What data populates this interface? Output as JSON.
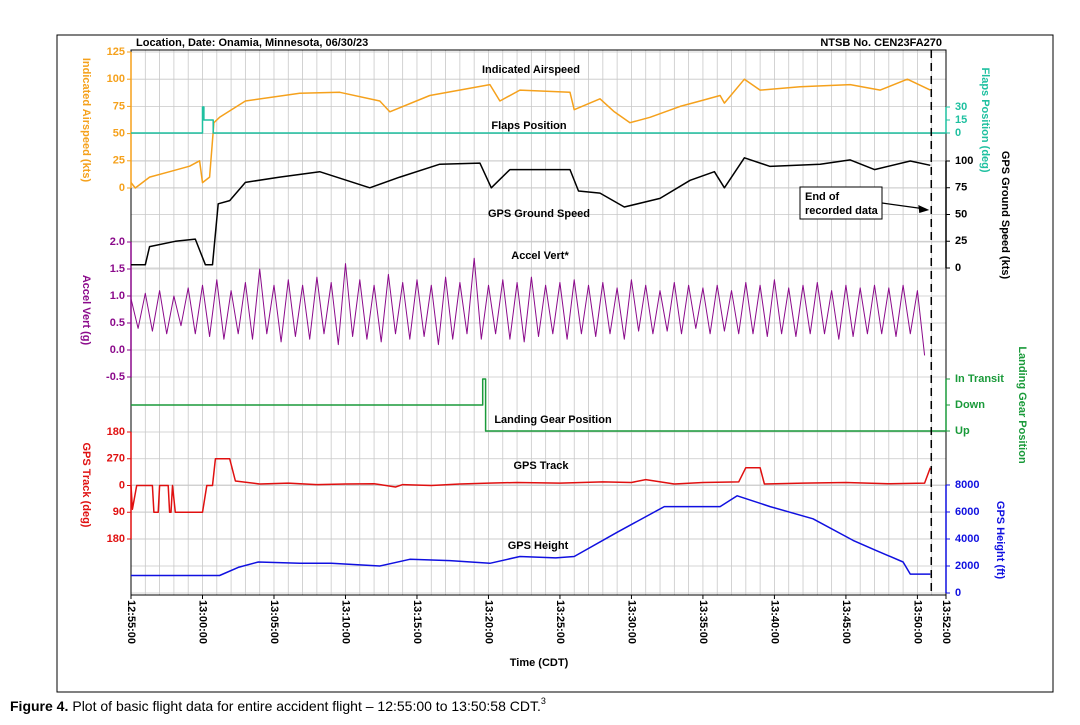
{
  "chart_data": {
    "type": "line",
    "title": "Location, Date: Onamia, Minnesota, 06/30/23",
    "subtitle": "NTSB No. CEN23FA270",
    "xlabel": "Time (CDT)",
    "xlim": [
      0,
      57
    ],
    "xticks": [
      {
        "value": 0,
        "label": "12:55:00"
      },
      {
        "value": 5,
        "label": "13:00:00"
      },
      {
        "value": 10,
        "label": "13:05:00"
      },
      {
        "value": 15,
        "label": "13:10:00"
      },
      {
        "value": 20,
        "label": "13:15:00"
      },
      {
        "value": 25,
        "label": "13:20:00"
      },
      {
        "value": 30,
        "label": "13:25:00"
      },
      {
        "value": 35,
        "label": "13:30:00"
      },
      {
        "value": 40,
        "label": "13:35:00"
      },
      {
        "value": 45,
        "label": "13:40:00"
      },
      {
        "value": 50,
        "label": "13:45:00"
      },
      {
        "value": 55,
        "label": "13:50:00"
      },
      {
        "value": 57,
        "label": "13:52:00"
      }
    ],
    "xgrid": [
      0,
      1,
      2,
      3,
      4,
      5,
      6,
      7,
      8,
      9,
      10,
      11,
      12,
      13,
      14,
      15,
      16,
      17,
      18,
      19,
      20,
      21,
      22,
      23,
      24,
      25,
      26,
      27,
      28,
      29,
      30,
      31,
      32,
      33,
      34,
      35,
      36,
      37,
      38,
      39,
      40,
      41,
      42,
      43,
      44,
      45,
      46,
      47,
      48,
      49,
      50,
      51,
      52,
      53,
      54,
      55,
      56,
      57
    ],
    "axes": [
      {
        "title": "Indicated Airspeed (kts)",
        "side": "left",
        "color": "#f5a11c",
        "grid": true,
        "ylim": [
          0,
          125
        ],
        "yticks": [
          0,
          25,
          50,
          75,
          100,
          125
        ]
      },
      {
        "title": "Flaps Position (deg)",
        "side": "right",
        "color": "#1fc0a0",
        "grid": false,
        "ylim": [
          0,
          30
        ],
        "yticks": [
          0,
          15,
          30
        ]
      },
      {
        "title": "GPS Ground Speed (kts)",
        "side": "right",
        "color": "#000000",
        "grid": true,
        "ylim": [
          0,
          100
        ],
        "yticks": [
          0,
          25,
          50,
          75,
          100
        ]
      },
      {
        "title": "Accel Vert (g)",
        "side": "left",
        "color": "#8b0a8b",
        "grid": true,
        "ylim": [
          -0.5,
          2
        ],
        "yticks": [
          -0.5,
          {
            "value": 0,
            "label": "0.0"
          },
          0.5,
          {
            "value": 1,
            "label": "1.0"
          },
          1.5,
          {
            "value": 2,
            "label": "2.0"
          }
        ]
      },
      {
        "title": "Landing Gear Position",
        "side": "right",
        "color": "#1a9a3a",
        "grid": false,
        "ylim": [
          0,
          2
        ],
        "yticks": [
          {
            "value": 0,
            "label": "Up"
          },
          {
            "value": 1,
            "label": "Down"
          },
          {
            "value": 2,
            "label": "In Transit"
          }
        ]
      },
      {
        "title": "GPS Track (deg)",
        "side": "left",
        "color": "#e01010",
        "grid": true,
        "ylim": [
          -180,
          180
        ],
        "yticks": [
          {
            "value": -180,
            "label": "180"
          },
          {
            "value": -90,
            "label": "270"
          },
          0,
          90,
          180
        ]
      },
      {
        "title": "GPS Height (ft)",
        "side": "right",
        "color": "#1010e0",
        "grid": true,
        "ylim": [
          0,
          8000
        ],
        "yticks": [
          0,
          2000,
          4000,
          6000,
          8000
        ]
      }
    ],
    "series": [
      {
        "name": "Indicated Airspeed",
        "axis": 0,
        "color": "#f5a11c",
        "x": [
          0,
          0.3,
          1.3,
          2.7,
          4.1,
          4.8,
          5.0,
          5.5,
          5.8,
          6.2,
          8,
          11.8,
          14.6,
          17.4,
          18.1,
          20.9,
          25.1,
          25.8,
          27.2,
          30.7,
          31,
          32.8,
          33.8,
          34.9,
          36.3,
          38.4,
          39.8,
          41.2,
          41.5,
          42.9,
          44,
          46.8,
          50.3,
          52.4,
          54.3,
          55.9
        ],
        "values": [
          5,
          0,
          10,
          15,
          20,
          25,
          5,
          10,
          60,
          65,
          80,
          87,
          88,
          80,
          70,
          85,
          95,
          80,
          90,
          88,
          72,
          82,
          70,
          60,
          65,
          75,
          80,
          85,
          78,
          100,
          90,
          93,
          95,
          90,
          100,
          90
        ]
      },
      {
        "name": "Flaps Position",
        "axis": 1,
        "color": "#1fc0a0",
        "x": [
          0,
          5,
          5,
          5.1,
          5.1,
          5.75,
          5.75,
          57
        ],
        "values": [
          0,
          0,
          30,
          30,
          15,
          15,
          0,
          0
        ]
      },
      {
        "name": "GPS Ground Speed",
        "axis": 2,
        "color": "#000000",
        "x": [
          0,
          1,
          1.3,
          3.1,
          4.5,
          5.2,
          5.7,
          6.1,
          6.9,
          8,
          10.4,
          13.2,
          16.7,
          18.8,
          21.6,
          24.4,
          25.2,
          26.5,
          30.7,
          31.3,
          32.8,
          34.5,
          37,
          39.1,
          40.8,
          41.5,
          42.9,
          44.7,
          48.2,
          50.3,
          52,
          54.5,
          55.9
        ],
        "values": [
          3,
          3,
          20,
          25,
          27,
          3,
          3,
          60,
          63,
          80,
          85,
          90,
          75,
          85,
          97,
          98,
          75,
          92,
          92,
          72,
          70,
          57,
          65,
          82,
          90,
          75,
          103,
          95,
          97,
          101,
          92,
          100,
          96
        ]
      },
      {
        "name": "Accel Vert*",
        "axis": 3,
        "color": "#8b0a8b",
        "x": [
          0,
          0.5,
          1,
          1.5,
          2,
          2.5,
          3,
          3.5,
          4,
          4.5,
          5,
          5.5,
          6,
          6.5,
          7,
          7.5,
          8,
          8.5,
          9,
          9.5,
          10,
          10.5,
          11,
          11.5,
          12,
          12.5,
          13,
          13.5,
          14,
          14.5,
          15,
          15.5,
          16,
          16.5,
          17,
          17.5,
          18,
          18.5,
          19,
          19.5,
          20,
          20.5,
          21,
          21.5,
          22,
          22.5,
          23,
          23.5,
          24,
          24.5,
          25,
          25.5,
          26,
          26.5,
          27,
          27.5,
          28,
          28.5,
          29,
          29.5,
          30,
          30.5,
          31,
          31.5,
          32,
          32.5,
          33,
          33.5,
          34,
          34.5,
          35,
          35.5,
          36,
          36.5,
          37,
          37.5,
          38,
          38.5,
          39,
          39.5,
          40,
          40.5,
          41,
          41.5,
          42,
          42.5,
          43,
          43.5,
          44,
          44.5,
          45,
          45.5,
          46,
          46.5,
          47,
          47.5,
          48,
          48.5,
          49,
          49.5,
          50,
          50.5,
          51,
          51.5,
          52,
          52.5,
          53,
          53.5,
          54,
          54.5,
          55,
          55.5
        ],
        "values": [
          0.95,
          0.4,
          1.05,
          0.35,
          1.1,
          0.3,
          1.0,
          0.45,
          1.15,
          0.3,
          1.2,
          0.25,
          1.3,
          0.2,
          1.1,
          0.3,
          1.25,
          0.2,
          1.5,
          0.3,
          1.2,
          0.15,
          1.3,
          0.25,
          1.2,
          0.2,
          1.35,
          0.3,
          1.25,
          0.1,
          1.6,
          0.25,
          1.3,
          0.2,
          1.2,
          0.15,
          1.4,
          0.3,
          1.25,
          0.2,
          1.3,
          0.25,
          1.2,
          0.1,
          1.35,
          0.2,
          1.25,
          0.3,
          1.7,
          0.2,
          1.2,
          0.3,
          1.3,
          0.2,
          1.25,
          0.15,
          1.35,
          0.25,
          1.2,
          0.3,
          1.25,
          0.2,
          1.3,
          0.3,
          1.2,
          0.25,
          1.25,
          0.3,
          1.15,
          0.2,
          1.3,
          0.35,
          1.2,
          0.3,
          1.1,
          0.35,
          1.25,
          0.3,
          1.2,
          0.4,
          1.15,
          0.3,
          1.2,
          0.35,
          1.1,
          0.3,
          1.25,
          0.3,
          1.2,
          0.25,
          1.3,
          0.3,
          1.15,
          0.25,
          1.2,
          0.3,
          1.25,
          0.3,
          1.1,
          0.2,
          1.2,
          0.25,
          1.15,
          0.3,
          1.2,
          0.3,
          1.15,
          0.25,
          1.2,
          0.3,
          1.1,
          -0.1
        ]
      },
      {
        "name": "Landing Gear Position",
        "axis": 4,
        "color": "#1a9a3a",
        "x": [
          0,
          24.6,
          24.6,
          24.8,
          24.8,
          57
        ],
        "values": [
          1,
          1,
          2,
          2,
          0,
          0
        ]
      },
      {
        "name": "GPS Track",
        "axis": 5,
        "color": "#e01010",
        "x": [
          0,
          0.1,
          0.4,
          1.5,
          1.6,
          1.9,
          2.0,
          2.6,
          2.7,
          2.8,
          2.9,
          3.1,
          5.0,
          5.3,
          5.7,
          5.9,
          6.9,
          7.3,
          9,
          11,
          13,
          15,
          17,
          18.5,
          19,
          21,
          23,
          25,
          27,
          30,
          33,
          35,
          36,
          38,
          40,
          42.5,
          43,
          44,
          44.3,
          47,
          50,
          53,
          55.5,
          55.9
        ],
        "values": [
          0,
          80,
          0,
          0,
          90,
          90,
          0,
          0,
          90,
          90,
          0,
          90,
          90,
          0,
          0,
          -90,
          -90,
          -15,
          -5,
          -8,
          -3,
          -5,
          -6,
          5,
          -3,
          0,
          -5,
          -8,
          -10,
          -8,
          -12,
          -10,
          -20,
          -5,
          -10,
          -12,
          -60,
          -60,
          -5,
          -8,
          -10,
          -6,
          -8,
          -60
        ]
      },
      {
        "name": "GPS Height",
        "axis": 6,
        "color": "#1010e0",
        "x": [
          0,
          6.2,
          7.5,
          8.9,
          11.8,
          14,
          17.4,
          19.5,
          22.3,
          25.1,
          27.2,
          29.7,
          31,
          34,
          37.3,
          41.2,
          42.4,
          44.7,
          47.7,
          50.5,
          52,
          54,
          54.5,
          55.9
        ],
        "values": [
          1300,
          1300,
          1900,
          2300,
          2200,
          2200,
          2000,
          2500,
          2400,
          2200,
          2700,
          2600,
          2700,
          4500,
          6400,
          6400,
          7200,
          6400,
          5500,
          3900,
          3200,
          2300,
          1400,
          1400
        ]
      }
    ],
    "end_marker": {
      "x": 55.97,
      "lines": [
        "End of",
        "recorded data"
      ]
    }
  },
  "caption": {
    "label": "Figure 4.",
    "text": "Plot of basic flight data for entire accident flight – 12:55:00 to 13:50:58 CDT.",
    "note": "3"
  }
}
